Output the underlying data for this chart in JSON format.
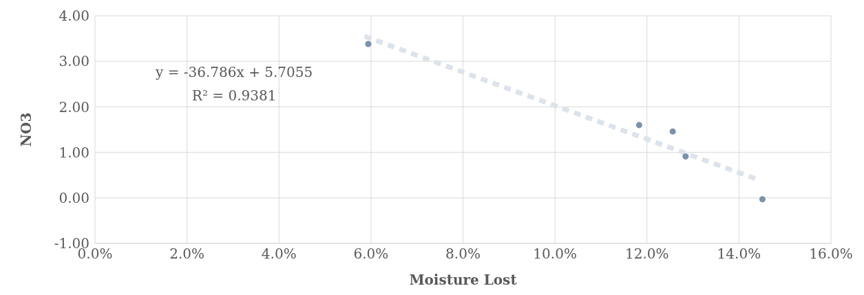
{
  "chart_data": {
    "type": "scatter",
    "xlabel": "Moisture Lost",
    "ylabel": "NO3",
    "annotations": [
      "y = -36.786x + 5.7055",
      "R² = 0.9381"
    ],
    "xlim": [
      0,
      16
    ],
    "xticks": [
      {
        "value": 0,
        "label": "0.0%"
      },
      {
        "value": 2,
        "label": "2.0%"
      },
      {
        "value": 4,
        "label": "4.0%"
      },
      {
        "value": 6,
        "label": "6.0%"
      },
      {
        "value": 8,
        "label": "8.0%"
      },
      {
        "value": 10,
        "label": "10.0%"
      },
      {
        "value": 12,
        "label": "12.0%"
      },
      {
        "value": 14,
        "label": "14.0%"
      },
      {
        "value": 16,
        "label": "16.0%"
      }
    ],
    "ylim": [
      -1,
      4
    ],
    "yticks": [
      {
        "value": -1,
        "label": "-1.00"
      },
      {
        "value": 0,
        "label": "0.00"
      },
      {
        "value": 1,
        "label": "1.00"
      },
      {
        "value": 2,
        "label": "2.00"
      },
      {
        "value": 3,
        "label": "3.00"
      },
      {
        "value": 4,
        "label": "4.00"
      }
    ],
    "grid": true,
    "series": [
      {
        "marker": "circle",
        "color": "#7a93ab",
        "x": [
          5.94,
          11.83,
          12.56,
          12.84,
          14.51
        ],
        "values": [
          3.38,
          1.6,
          1.46,
          0.91,
          -0.03
        ]
      },
      {
        "type": "line",
        "color": "#dde3ea",
        "line_style": "dashed",
        "x": [
          5.86,
          14.39
        ],
        "values": [
          3.55,
          0.41
        ]
      }
    ]
  }
}
